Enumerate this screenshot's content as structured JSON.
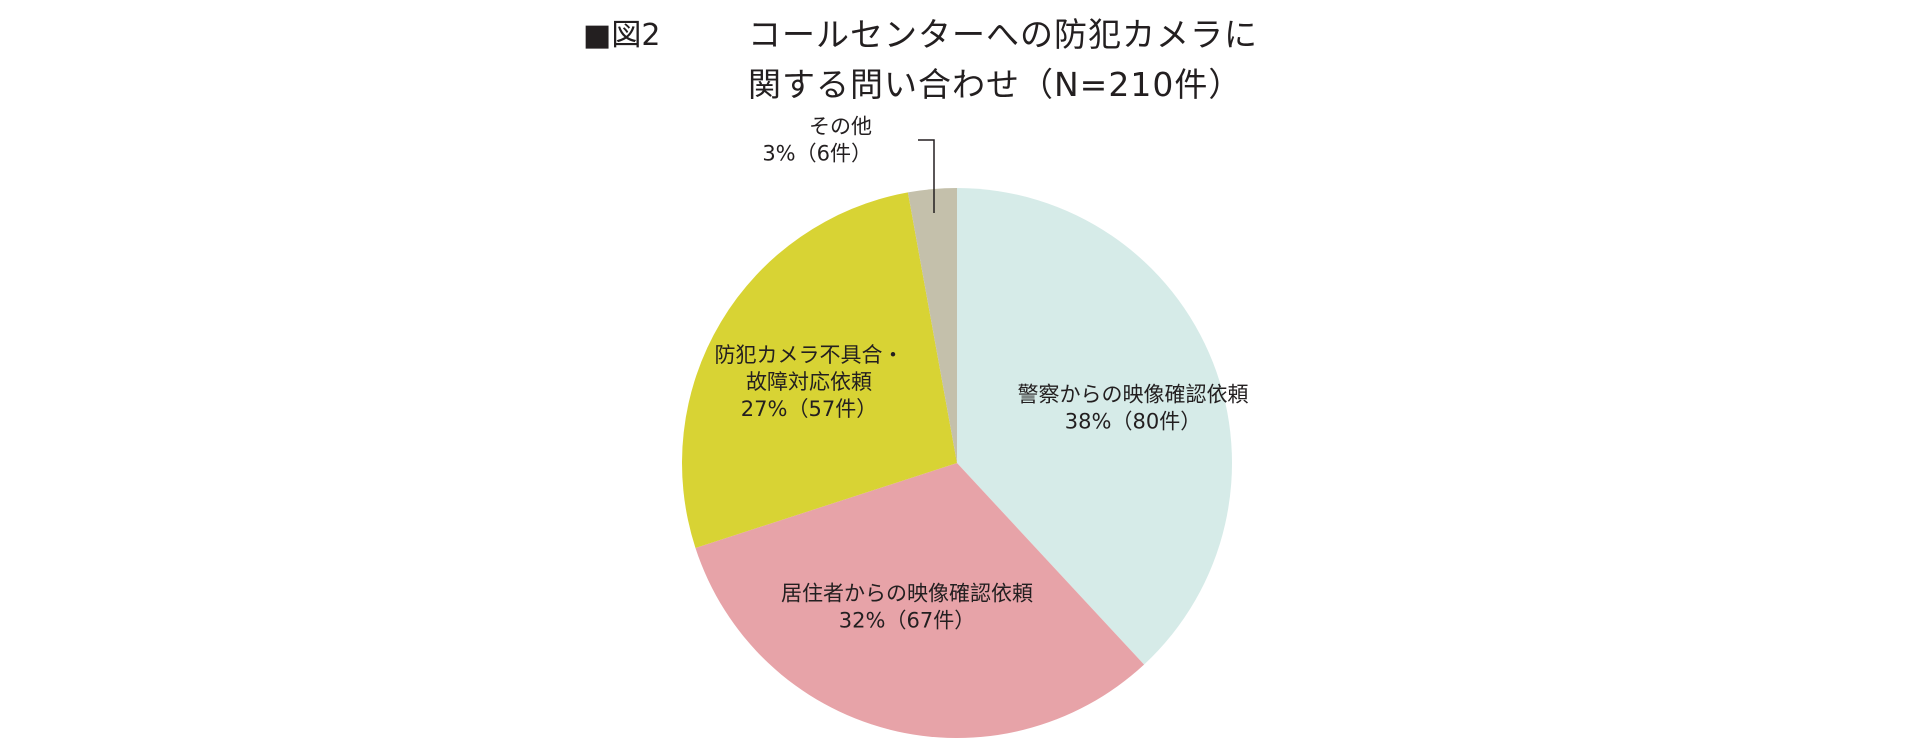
{
  "figure_label": "■図2",
  "title_lines": [
    "コールセンターへの防犯カメラに",
    "関する問い合わせ（N=210件）"
  ],
  "chart_data": {
    "type": "pie",
    "title": "コールセンターへの防犯カメラに関する問い合わせ（N=210件）",
    "total": 210,
    "slices": [
      {
        "label_lines": [
          "警察からの映像確認依頼",
          "38%（80件）"
        ],
        "label": "警察からの映像確認依頼",
        "percent": 38,
        "count": 80,
        "color": "#d6ebe8"
      },
      {
        "label_lines": [
          "居住者からの映像確認依頼",
          "32%（67件）"
        ],
        "label": "居住者からの映像確認依頼",
        "percent": 32,
        "count": 67,
        "color": "#e7a3a8"
      },
      {
        "label_lines": [
          "防犯カメラ不具合・",
          "故障対応依頼",
          "27%（57件）"
        ],
        "label": "防犯カメラ不具合・故障対応依頼",
        "percent": 27,
        "count": 57,
        "color": "#d8d334"
      },
      {
        "label_lines": [
          "その他",
          "3%（6件）"
        ],
        "label": "その他",
        "percent": 3,
        "count": 6,
        "color": "#c4c0ab"
      }
    ],
    "start": "12 o'clock",
    "direction": "clockwise",
    "legend": "none",
    "label_placement": "inside, callout line for その他"
  }
}
